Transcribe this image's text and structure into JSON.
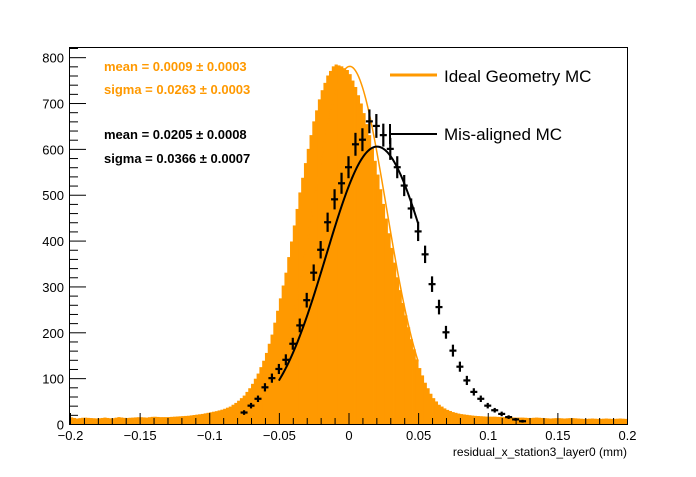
{
  "chart_data": {
    "type": "bar",
    "title": "",
    "xlabel": "residual_x_station3_layer0 (mm)",
    "ylabel": "",
    "xlim": [
      -0.2,
      0.2
    ],
    "ylim": [
      0,
      820
    ],
    "grid": false,
    "legend_placement": "top-right",
    "x_ticks": [
      -0.2,
      -0.15,
      -0.1,
      -0.05,
      0,
      0.05,
      0.1,
      0.15,
      0.2
    ],
    "x_tick_labels": [
      "−0.2",
      "−0.15",
      "−0.1",
      "−0.05",
      "0",
      "0.05",
      "0.1",
      "0.15",
      "0.2"
    ],
    "y_ticks": [
      0,
      100,
      200,
      300,
      400,
      500,
      600,
      700,
      800
    ],
    "y_tick_labels": [
      "0",
      "100",
      "200",
      "300",
      "400",
      "500",
      "600",
      "700",
      "800"
    ],
    "series": [
      {
        "name": "Ideal Geometry MC",
        "kind": "histogram",
        "color": "#ff9900",
        "bin_width": 0.002,
        "x": [
          -0.2,
          -0.195,
          -0.19,
          -0.185,
          -0.18,
          -0.175,
          -0.17,
          -0.165,
          -0.16,
          -0.155,
          -0.15,
          -0.145,
          -0.14,
          -0.135,
          -0.13,
          -0.125,
          -0.12,
          -0.115,
          -0.11,
          -0.105,
          -0.1,
          -0.095,
          -0.09,
          -0.085,
          -0.08,
          -0.075,
          -0.07,
          -0.065,
          -0.06,
          -0.055,
          -0.05,
          -0.045,
          -0.04,
          -0.035,
          -0.03,
          -0.025,
          -0.02,
          -0.015,
          -0.01,
          -0.005,
          0,
          0.005,
          0.01,
          0.015,
          0.02,
          0.025,
          0.03,
          0.035,
          0.04,
          0.045,
          0.05,
          0.055,
          0.06,
          0.065,
          0.07,
          0.075,
          0.08,
          0.085,
          0.09,
          0.095,
          0.1,
          0.105,
          0.11,
          0.115,
          0.12,
          0.125,
          0.13,
          0.135,
          0.14,
          0.145,
          0.15,
          0.155,
          0.16,
          0.165,
          0.17,
          0.175,
          0.18,
          0.185,
          0.19,
          0.195,
          0.2
        ],
        "values": [
          15,
          12,
          14,
          13,
          12,
          14,
          12,
          15,
          13,
          14,
          15,
          14,
          16,
          15,
          15,
          16,
          17,
          18,
          20,
          22,
          25,
          28,
          32,
          38,
          48,
          62,
          82,
          110,
          145,
          195,
          260,
          330,
          415,
          505,
          585,
          660,
          720,
          760,
          785,
          780,
          770,
          735,
          690,
          630,
          560,
          480,
          400,
          320,
          250,
          185,
          130,
          90,
          60,
          42,
          32,
          26,
          22,
          20,
          18,
          17,
          16,
          16,
          15,
          15,
          14,
          14,
          13,
          14,
          13,
          12,
          13,
          12,
          13,
          12,
          11,
          12,
          11,
          12,
          11,
          12,
          11
        ]
      },
      {
        "name": "Mis-aligned MC",
        "kind": "points",
        "color": "#000000",
        "x": [
          -0.075,
          -0.07,
          -0.065,
          -0.06,
          -0.055,
          -0.05,
          -0.045,
          -0.04,
          -0.035,
          -0.03,
          -0.025,
          -0.02,
          -0.015,
          -0.01,
          -0.005,
          0,
          0.005,
          0.01,
          0.015,
          0.02,
          0.025,
          0.03,
          0.035,
          0.04,
          0.045,
          0.05,
          0.055,
          0.06,
          0.065,
          0.07,
          0.075,
          0.08,
          0.085,
          0.09,
          0.095,
          0.1,
          0.105,
          0.11,
          0.115,
          0.12,
          0.125
        ],
        "values": [
          25,
          40,
          55,
          80,
          100,
          120,
          140,
          175,
          215,
          270,
          330,
          380,
          440,
          490,
          525,
          560,
          610,
          620,
          660,
          650,
          630,
          600,
          560,
          520,
          470,
          420,
          370,
          305,
          255,
          200,
          160,
          125,
          95,
          70,
          55,
          40,
          30,
          22,
          15,
          10,
          6
        ],
        "error": [
          5,
          6,
          7,
          9,
          10,
          11,
          12,
          13,
          15,
          16,
          18,
          19,
          21,
          22,
          23,
          24,
          25,
          25,
          26,
          26,
          25,
          24,
          24,
          23,
          22,
          21,
          19,
          17,
          16,
          14,
          13,
          11,
          10,
          8,
          7,
          6,
          5,
          5,
          4,
          3,
          3
        ]
      }
    ],
    "fits": [
      {
        "series": "Ideal Geometry MC",
        "color": "#ff9900",
        "mean_label": "mean = 0.0009 ± 0.0003",
        "sigma_label": "sigma = 0.0263 ± 0.0003",
        "mean": 0.0009,
        "sigma": 0.0263,
        "amplitude": 780,
        "x_range": [
          -0.05,
          0.05
        ]
      },
      {
        "series": "Mis-aligned MC",
        "color": "#000000",
        "mean_label": "mean = 0.0205 ± 0.0008",
        "sigma_label": "sigma = 0.0366 ± 0.0007",
        "mean": 0.0205,
        "sigma": 0.0366,
        "amplitude": 605,
        "x_range": [
          -0.05,
          0.05
        ]
      }
    ]
  }
}
